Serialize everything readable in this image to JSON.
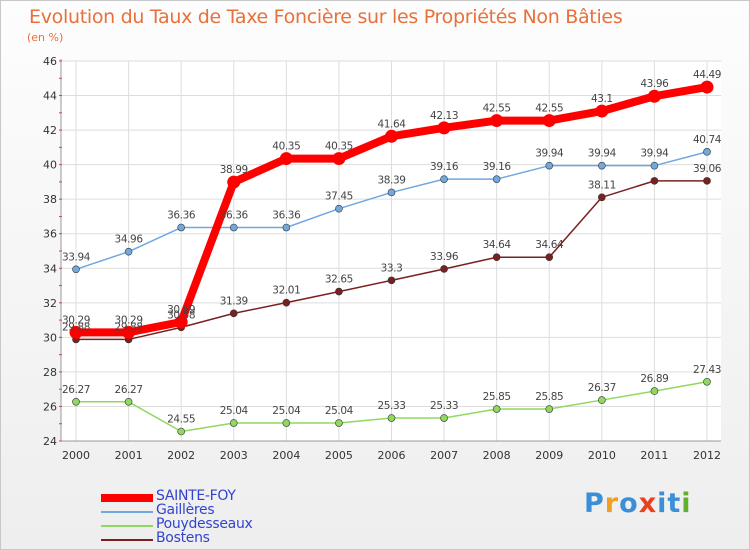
{
  "title": "Evolution du Taux de Taxe Foncière sur les Propriétés Non Bâties",
  "subtitle": "(en %)",
  "logo": {
    "text": "Proxiti",
    "colors": [
      "#3b8fd6",
      "#f0a020",
      "#3b8fd6",
      "#e84020",
      "#3b8fd6",
      "#3b8fd6",
      "#60b030"
    ]
  },
  "chart_data": {
    "type": "line",
    "title": "Evolution du Taux de Taxe Foncière sur les Propriétés Non Bâties",
    "ylabel": "(en %)",
    "xlabel": "",
    "ylim": [
      24,
      46
    ],
    "yticks": [
      24,
      26,
      28,
      30,
      32,
      34,
      36,
      38,
      40,
      42,
      44,
      46
    ],
    "grid": true,
    "legend_position": "bottom-left",
    "x": [
      "2000",
      "2001",
      "2002",
      "2003",
      "2004",
      "2005",
      "2006",
      "2007",
      "2008",
      "2009",
      "2010",
      "2011",
      "2012"
    ],
    "series": [
      {
        "name": "Bostens",
        "color": "#7a2020",
        "values": [
          29.88,
          29.88,
          30.58,
          31.39,
          32.01,
          32.65,
          33.3,
          33.96,
          34.64,
          34.64,
          38.11,
          39.06,
          39.06
        ],
        "labels": [
          "29.88",
          "29.88",
          "30.58",
          "31.39",
          "32.01",
          "32.65",
          "33.3",
          "33.96",
          "34.64",
          "34.64",
          "38.11",
          "39.06",
          "39.06"
        ],
        "show_label": [
          true,
          true,
          true,
          true,
          true,
          true,
          true,
          true,
          true,
          true,
          true,
          false,
          true
        ]
      },
      {
        "name": "Pouydesseaux",
        "color": "#90d860",
        "values": [
          26.27,
          26.27,
          24.55,
          25.04,
          25.04,
          25.04,
          25.33,
          25.33,
          25.85,
          25.85,
          26.37,
          26.89,
          27.43
        ],
        "labels": [
          "26.27",
          "26.27",
          "24.55",
          "25.04",
          "25.04",
          "25.04",
          "25.33",
          "25.33",
          "25.85",
          "25.85",
          "26.37",
          "26.89",
          "27.43"
        ],
        "show_label": [
          true,
          true,
          true,
          true,
          true,
          true,
          true,
          true,
          true,
          true,
          true,
          true,
          true
        ]
      },
      {
        "name": "Gaillères",
        "color": "#70a8e0",
        "values": [
          33.94,
          34.96,
          36.36,
          36.36,
          36.36,
          37.45,
          38.39,
          39.16,
          39.16,
          39.94,
          39.94,
          39.94,
          40.74
        ],
        "labels": [
          "33.94",
          "34.96",
          "36.36",
          "36.36",
          "36.36",
          "37.45",
          "38.39",
          "39.16",
          "39.16",
          "39.94",
          "39.94",
          "39.94",
          "40.74"
        ],
        "show_label": [
          true,
          true,
          true,
          true,
          true,
          true,
          true,
          true,
          true,
          true,
          true,
          true,
          true
        ]
      },
      {
        "name": "SAINTE-FOY",
        "color": "#ff0000",
        "values": [
          30.29,
          30.29,
          30.89,
          38.99,
          40.35,
          40.35,
          41.64,
          42.13,
          42.55,
          42.55,
          43.1,
          43.96,
          44.49
        ],
        "labels": [
          "30.29",
          "30.29",
          "30.89",
          "38.99",
          "40.35",
          "40.35",
          "41.64",
          "42.13",
          "42.55",
          "42.55",
          "43.1",
          "43.96",
          "44.49"
        ],
        "show_label": [
          true,
          true,
          true,
          true,
          true,
          true,
          true,
          true,
          true,
          true,
          true,
          true,
          true
        ]
      }
    ],
    "legend": [
      {
        "name": "SAINTE-FOY",
        "color": "#ff0000",
        "weight": "thick"
      },
      {
        "name": "Gaillères",
        "color": "#70a8e0",
        "weight": "thin"
      },
      {
        "name": "Pouydesseaux",
        "color": "#90d860",
        "weight": "thin"
      },
      {
        "name": "Bostens",
        "color": "#7a2020",
        "weight": "thin"
      }
    ]
  }
}
